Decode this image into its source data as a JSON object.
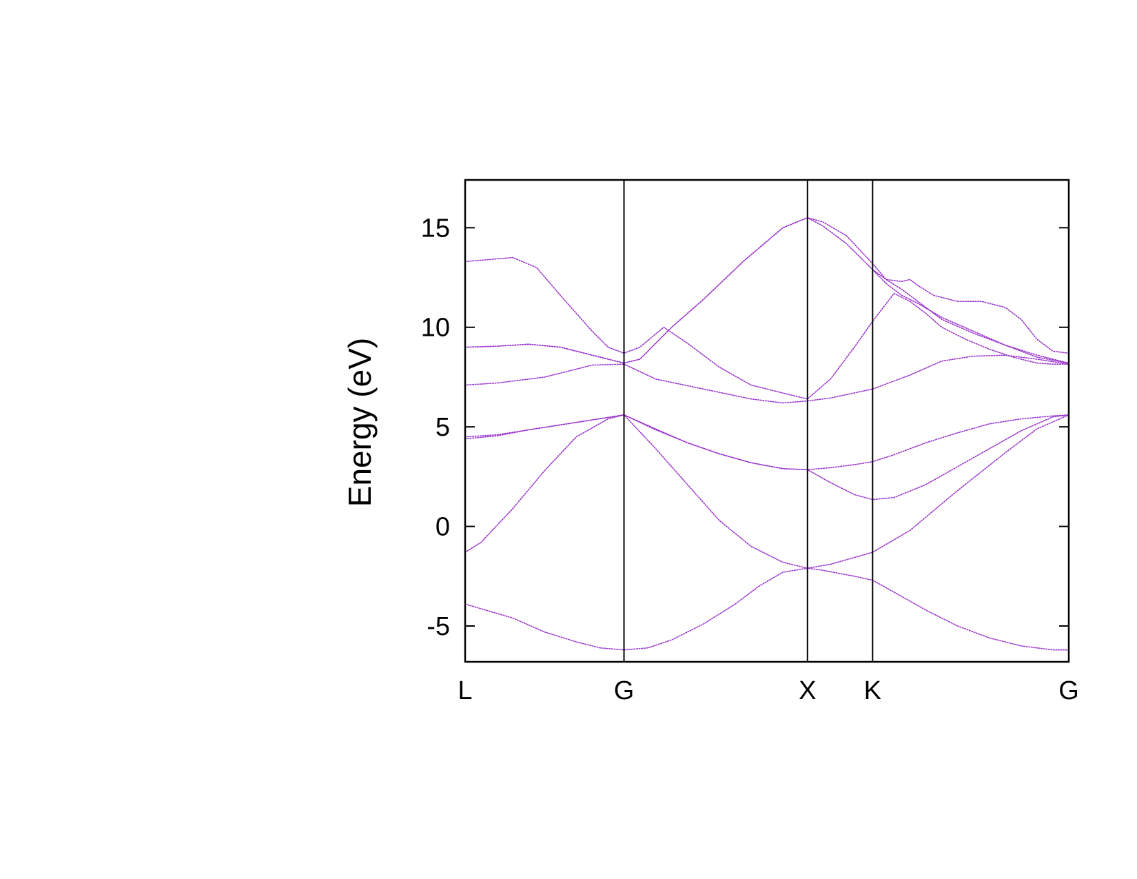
{
  "chart_data": {
    "type": "line",
    "title": "",
    "xlabel": "",
    "ylabel": "Energy (eV)",
    "xlim": [
      0,
      3.8
    ],
    "ylim": [
      -6.8,
      17.4
    ],
    "yticks": [
      -5,
      0,
      5,
      10,
      15
    ],
    "ytick_labels": [
      "-5",
      "0",
      "5",
      "10",
      "15"
    ],
    "kpoints": [
      {
        "label": "L",
        "x": 0
      },
      {
        "label": "G",
        "x": 1.0
      },
      {
        "label": "X",
        "x": 2.155
      },
      {
        "label": "K",
        "x": 2.565
      },
      {
        "label": "G",
        "x": 3.8
      }
    ],
    "grid": false,
    "legend": "none",
    "line_color": "#9933cc",
    "series": [
      {
        "x": [
          0,
          0.3,
          0.5,
          0.7,
          0.85,
          1.0,
          1.15,
          1.3,
          1.5,
          1.7,
          1.85,
          2.0,
          2.155,
          2.25,
          2.35,
          2.45,
          2.565,
          2.7,
          2.9,
          3.1,
          3.3,
          3.5,
          3.7,
          3.8
        ],
        "y": [
          -3.9,
          -4.6,
          -5.3,
          -5.8,
          -6.1,
          -6.2,
          -6.1,
          -5.7,
          -4.9,
          -3.9,
          -3.0,
          -2.3,
          -2.1,
          -2.2,
          -2.35,
          -2.5,
          -2.7,
          -3.3,
          -4.2,
          -5.0,
          -5.6,
          -6.0,
          -6.2,
          -6.2
        ]
      },
      {
        "x": [
          0,
          0.1,
          0.3,
          0.5,
          0.7,
          0.9,
          1.0,
          1.2,
          1.4,
          1.6,
          1.8,
          2.0,
          2.155,
          2.3,
          2.565,
          2.8,
          3.1,
          3.4,
          3.6,
          3.8
        ],
        "y": [
          -1.3,
          -0.8,
          0.9,
          2.8,
          4.5,
          5.4,
          5.6,
          3.9,
          2.1,
          0.3,
          -1.0,
          -1.8,
          -2.1,
          -1.9,
          -1.3,
          -0.2,
          1.8,
          3.7,
          4.9,
          5.6
        ]
      },
      {
        "x": [
          0,
          0.2,
          0.4,
          0.6,
          0.8,
          1.0,
          1.2,
          1.4,
          1.6,
          1.8,
          2.0,
          2.155,
          2.3,
          2.45,
          2.565,
          2.7,
          2.9,
          3.1,
          3.3,
          3.5,
          3.7,
          3.8
        ],
        "y": [
          4.5,
          4.6,
          4.85,
          5.1,
          5.35,
          5.6,
          4.9,
          4.2,
          3.65,
          3.2,
          2.9,
          2.85,
          2.2,
          1.6,
          1.35,
          1.45,
          2.1,
          3.0,
          3.9,
          4.8,
          5.5,
          5.6
        ]
      },
      {
        "x": [
          0,
          0.2,
          0.4,
          0.6,
          0.8,
          1.0,
          1.2,
          1.4,
          1.6,
          1.8,
          2.0,
          2.155,
          2.3,
          2.45,
          2.565,
          2.7,
          2.9,
          3.1,
          3.3,
          3.5,
          3.7,
          3.8
        ],
        "y": [
          4.4,
          4.55,
          4.85,
          5.1,
          5.35,
          5.6,
          4.85,
          4.2,
          3.65,
          3.2,
          2.9,
          2.85,
          2.95,
          3.1,
          3.25,
          3.6,
          4.2,
          4.7,
          5.15,
          5.4,
          5.55,
          5.6
        ]
      },
      {
        "x": [
          0,
          0.2,
          0.5,
          0.8,
          1.0,
          1.2,
          1.5,
          1.8,
          2.0,
          2.155,
          2.3,
          2.565,
          2.8,
          3.0,
          3.2,
          3.4,
          3.6,
          3.8
        ],
        "y": [
          7.1,
          7.2,
          7.5,
          8.1,
          8.15,
          7.4,
          6.9,
          6.4,
          6.2,
          6.3,
          6.45,
          6.9,
          7.6,
          8.3,
          8.55,
          8.6,
          8.4,
          8.15
        ]
      },
      {
        "x": [
          0,
          0.2,
          0.4,
          0.6,
          0.8,
          1.0,
          1.1,
          1.2,
          1.3,
          1.5,
          1.75,
          2.0,
          2.155,
          2.25,
          2.4,
          2.565,
          2.65,
          2.75,
          2.85,
          3.0,
          3.2,
          3.4,
          3.6,
          3.8
        ],
        "y": [
          9.0,
          9.05,
          9.15,
          9.0,
          8.6,
          8.2,
          8.4,
          9.2,
          10.0,
          11.4,
          13.3,
          15.0,
          15.5,
          15.3,
          14.6,
          13.2,
          12.4,
          11.9,
          11.3,
          10.4,
          9.7,
          9.1,
          8.6,
          8.2
        ]
      },
      {
        "x": [
          0,
          0.2,
          0.4,
          0.6,
          0.8,
          1.0,
          1.1,
          1.2,
          1.3,
          1.5,
          1.75,
          2.0,
          2.155,
          2.25,
          2.4,
          2.565,
          2.65,
          2.75,
          2.85,
          3.0,
          3.2,
          3.4,
          3.6,
          3.8
        ],
        "y": [
          9.0,
          9.05,
          9.15,
          9.0,
          8.6,
          8.2,
          8.4,
          9.2,
          10.0,
          11.4,
          13.3,
          15.0,
          15.5,
          15.1,
          14.2,
          12.9,
          12.2,
          11.6,
          11.2,
          10.5,
          9.8,
          9.1,
          8.5,
          8.2
        ]
      },
      {
        "x": [
          0,
          0.15,
          0.3,
          0.45,
          0.6,
          0.8,
          0.9,
          1.0,
          1.1,
          1.25,
          1.4,
          1.6,
          1.8,
          2.0,
          2.155,
          2.3,
          2.45,
          2.565,
          2.7,
          2.8,
          2.9,
          3.0,
          3.15,
          3.3,
          3.45,
          3.6,
          3.7,
          3.8
        ],
        "y": [
          13.3,
          13.4,
          13.5,
          13.0,
          11.6,
          9.8,
          9.0,
          8.7,
          9.0,
          10.0,
          9.2,
          8.0,
          7.1,
          6.7,
          6.4,
          7.4,
          9.0,
          10.3,
          11.7,
          11.3,
          10.7,
          10.0,
          9.4,
          8.9,
          8.5,
          8.2,
          8.15,
          8.15
        ]
      },
      {
        "x": [
          2.565,
          2.65,
          2.75,
          2.8,
          2.85,
          2.95,
          3.1,
          3.25,
          3.4,
          3.5,
          3.6,
          3.7,
          3.8
        ],
        "y": [
          12.9,
          12.4,
          12.3,
          12.4,
          12.1,
          11.6,
          11.3,
          11.3,
          11.0,
          10.4,
          9.4,
          8.8,
          8.7
        ]
      }
    ]
  }
}
